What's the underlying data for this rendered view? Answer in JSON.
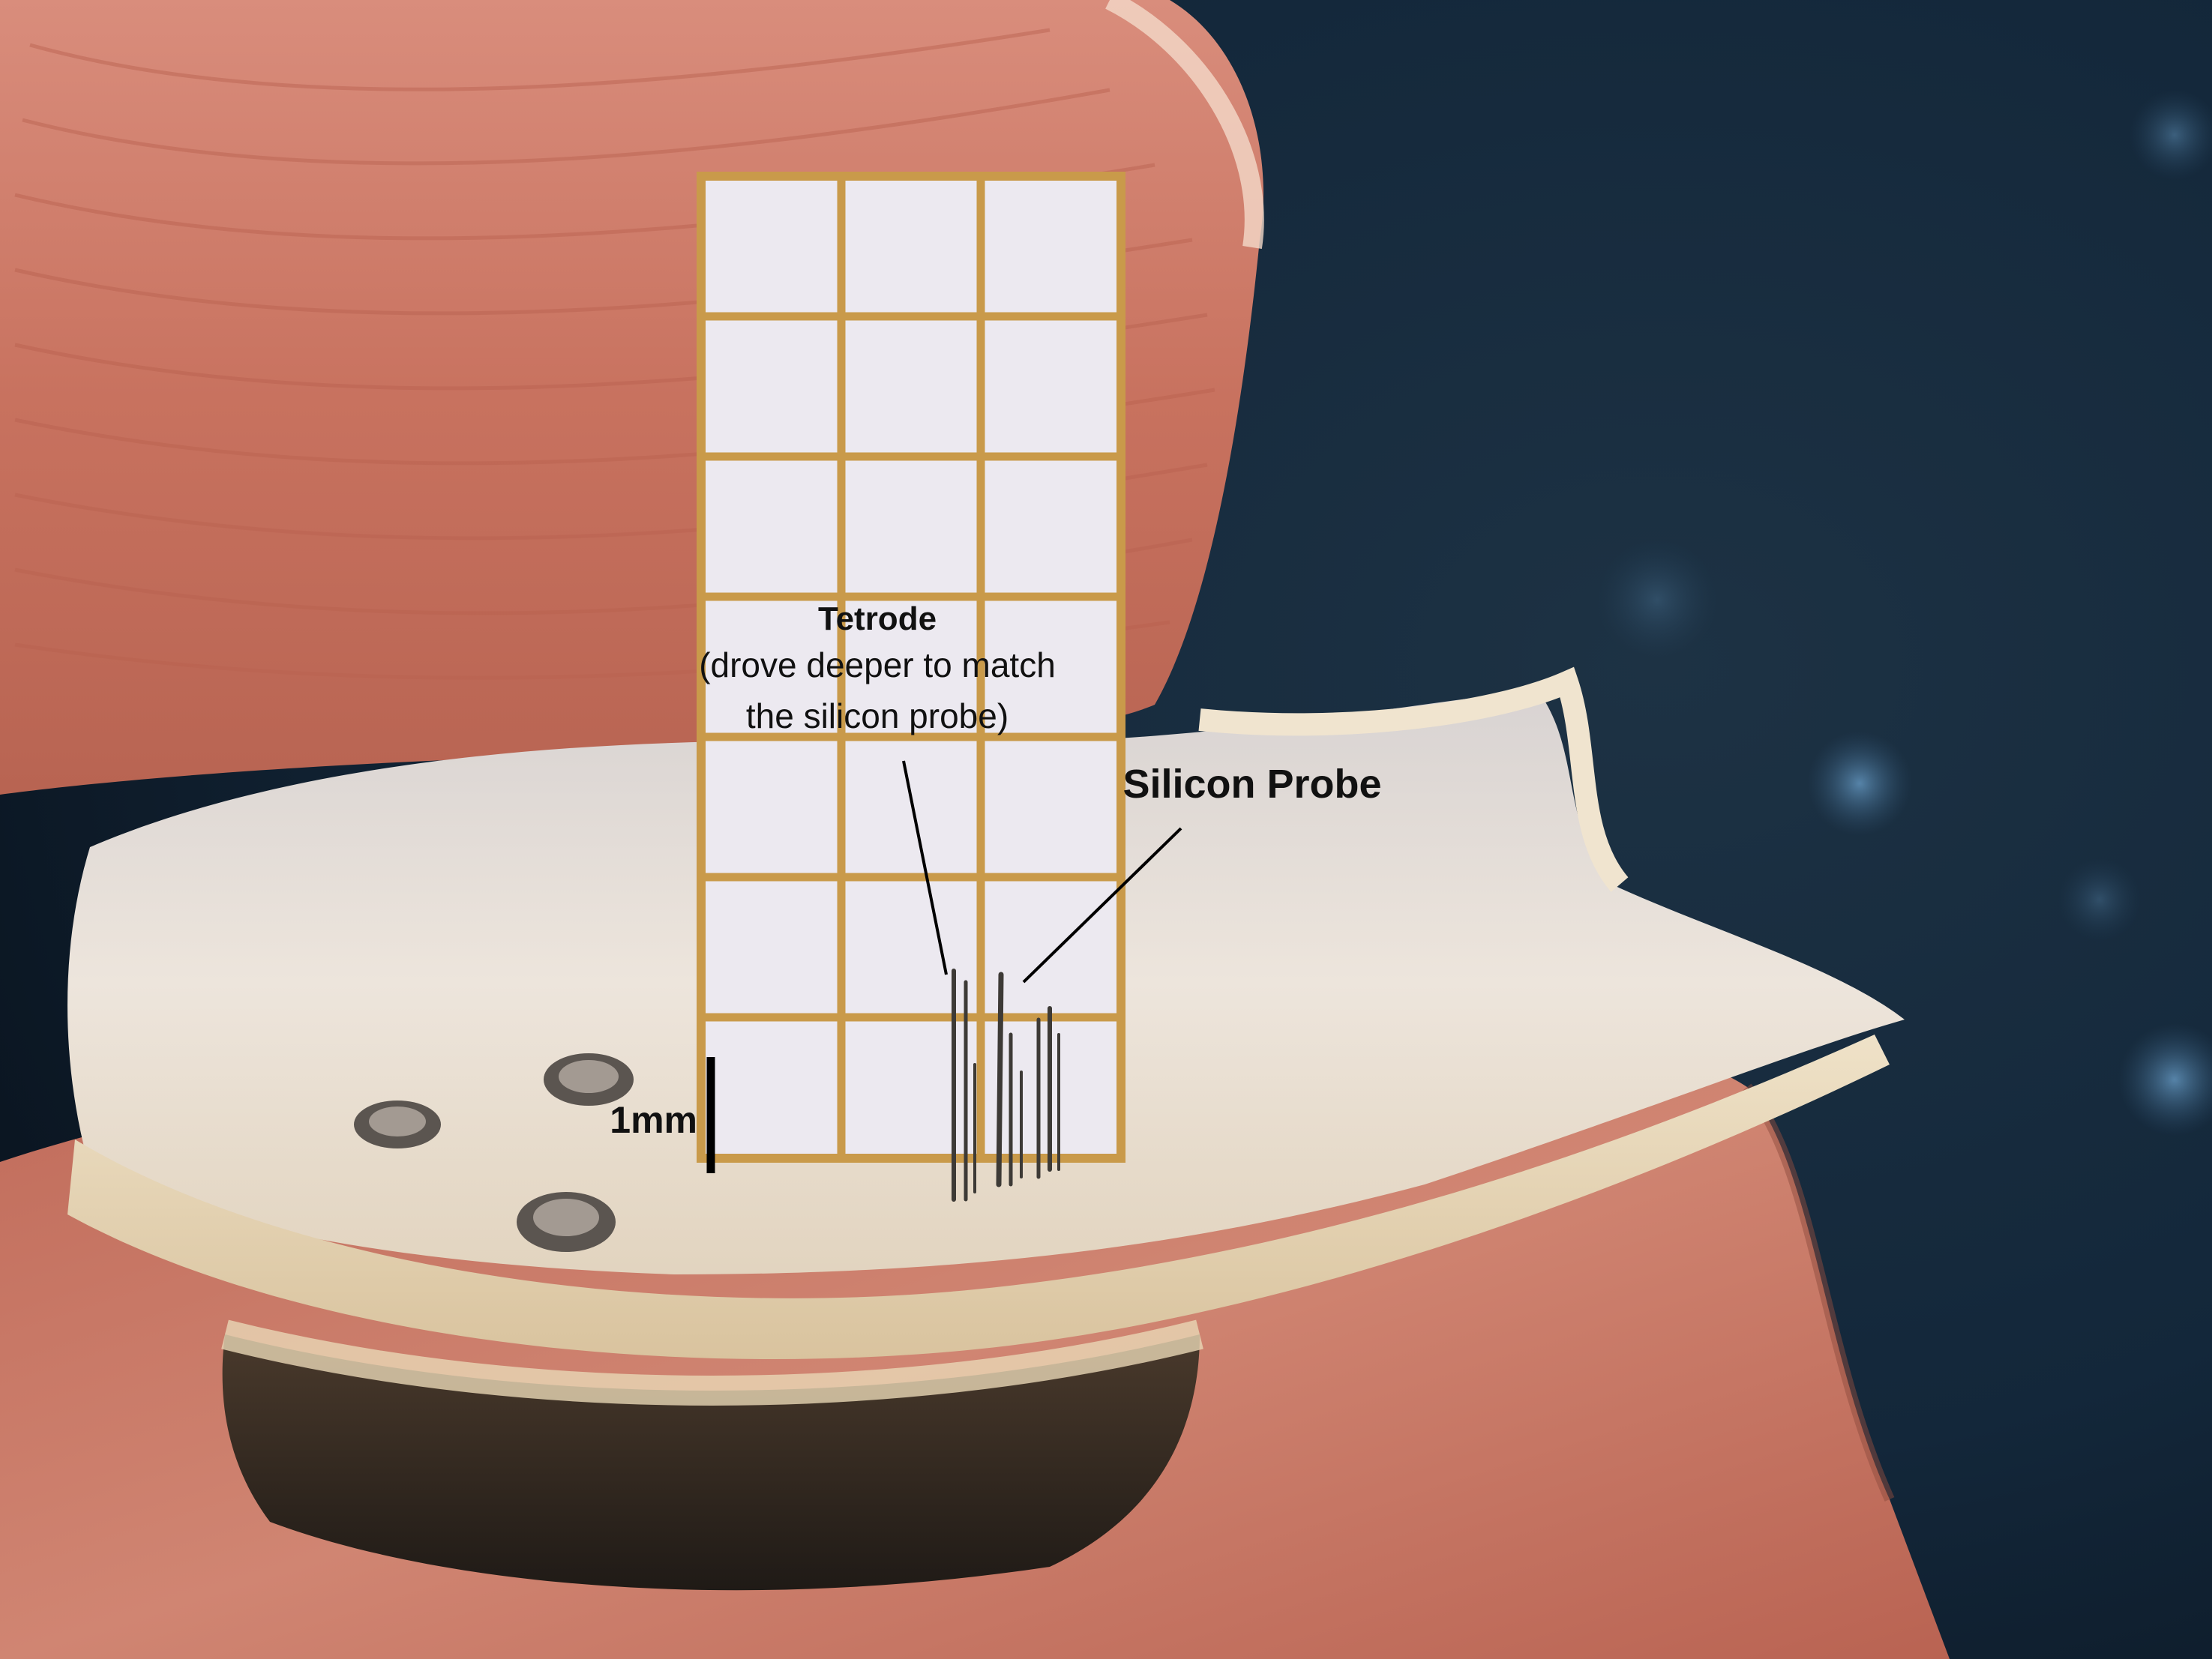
{
  "annotations": {
    "tetrode_title": "Tetrode",
    "tetrode_note_line1": "(drove deeper to match",
    "tetrode_note_line2": "the silicon probe)",
    "silicon_probe": "Silicon Probe",
    "scale_bar": "1mm"
  },
  "colors": {
    "background": "#0f1e2c",
    "finger_skin": "#c96f5e",
    "grid_paper": "#ece9f0",
    "grid_lines": "#c99a4a",
    "skull_cement": "#e8ddd0",
    "label_text": "#111111"
  }
}
